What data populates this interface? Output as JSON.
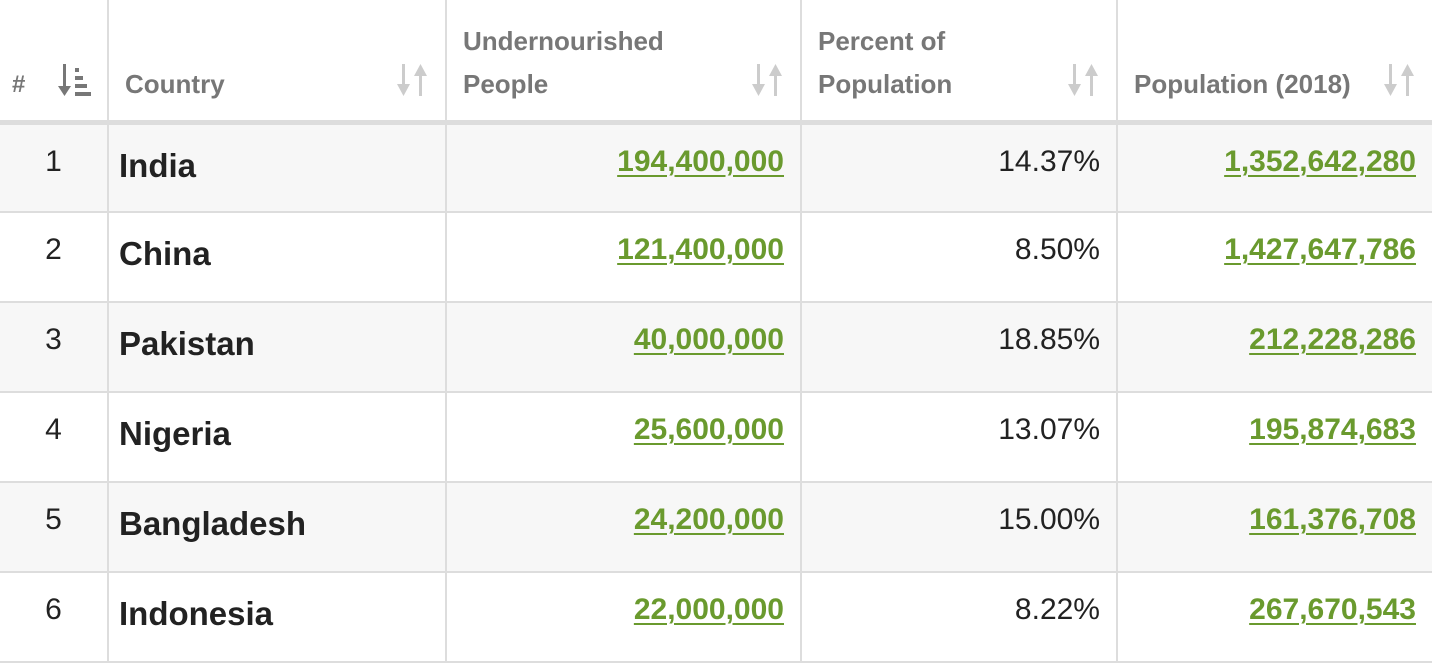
{
  "table": {
    "headers": {
      "rank": "#",
      "country": "Country",
      "undernourished": "Undernourished People",
      "percent": "Percent of Population",
      "population": "Population (2018)"
    },
    "rows": [
      {
        "rank": "1",
        "country": "India",
        "undernourished": "194,400,000",
        "percent": "14.37%",
        "population": "1,352,642,280"
      },
      {
        "rank": "2",
        "country": "China",
        "undernourished": "121,400,000",
        "percent": "8.50%",
        "population": "1,427,647,786"
      },
      {
        "rank": "3",
        "country": "Pakistan",
        "undernourished": "40,000,000",
        "percent": "18.85%",
        "population": "212,228,286"
      },
      {
        "rank": "4",
        "country": "Nigeria",
        "undernourished": "25,600,000",
        "percent": "13.07%",
        "population": "195,874,683"
      },
      {
        "rank": "5",
        "country": "Bangladesh",
        "undernourished": "24,200,000",
        "percent": "15.00%",
        "population": "161,376,708"
      },
      {
        "rank": "6",
        "country": "Indonesia",
        "undernourished": "22,000,000",
        "percent": "8.22%",
        "population": "267,670,543"
      }
    ]
  },
  "colors": {
    "link": "#6a9a2e",
    "header_text": "#777777",
    "border": "#dddddd",
    "stripe": "#f7f7f7"
  },
  "icons": {
    "rank_sort": "sort-descending-active-icon",
    "column_sort": "sort-both-icon"
  }
}
